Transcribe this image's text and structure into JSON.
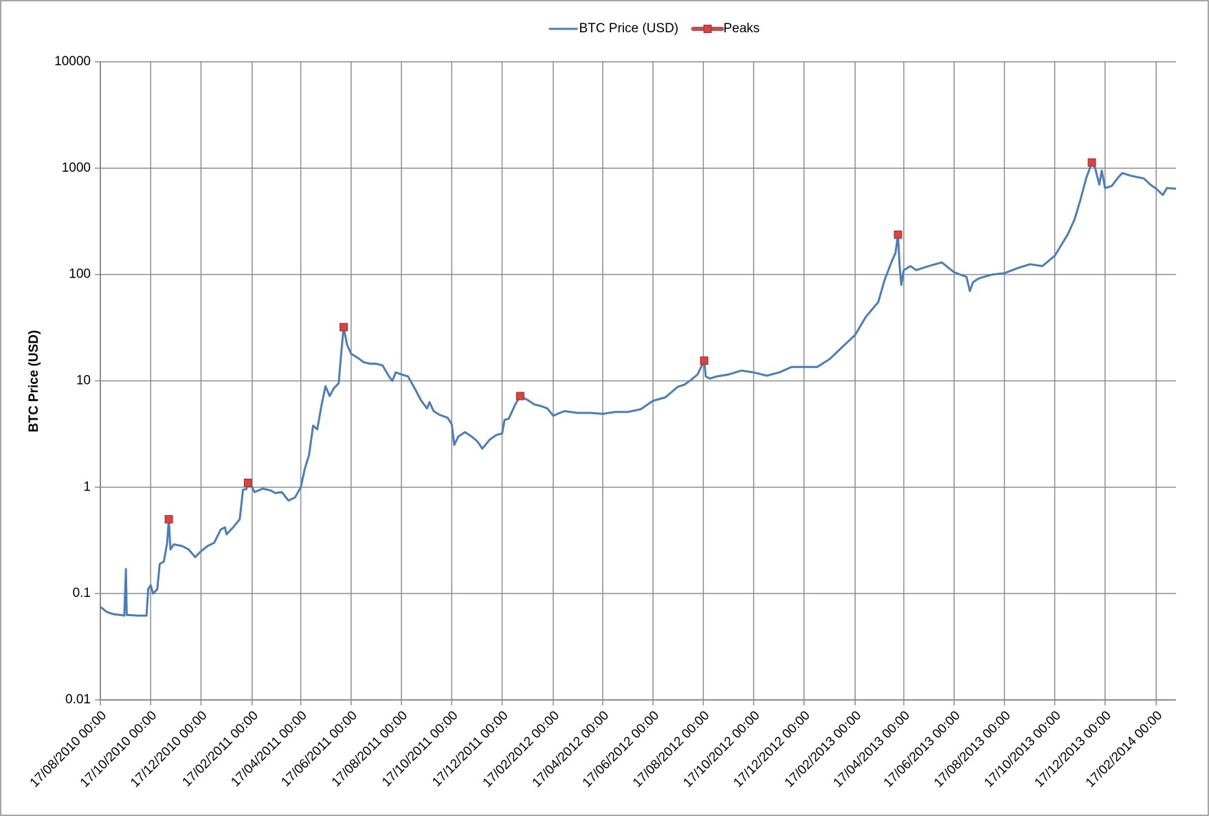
{
  "chart_data": {
    "type": "line",
    "ylabel": "BTC Price (USD)",
    "log_y": true,
    "grid": true,
    "legend": "top",
    "xlim": [
      "2010-08-17",
      "2014-03-13"
    ],
    "ylim": [
      0.01,
      10000
    ],
    "yticks": [
      0.01,
      0.1,
      1,
      10,
      100,
      1000,
      10000
    ],
    "xticks": [
      {
        "value": "2010-08-17",
        "label": "17/08/2010 00:00"
      },
      {
        "value": "2010-10-17",
        "label": "17/10/2010 00:00"
      },
      {
        "value": "2010-12-17",
        "label": "17/12/2010 00:00"
      },
      {
        "value": "2011-02-17",
        "label": "17/02/2011 00:00"
      },
      {
        "value": "2011-04-17",
        "label": "17/04/2011 00:00"
      },
      {
        "value": "2011-06-17",
        "label": "17/06/2011 00:00"
      },
      {
        "value": "2011-08-17",
        "label": "17/08/2011 00:00"
      },
      {
        "value": "2011-10-17",
        "label": "17/10/2011 00:00"
      },
      {
        "value": "2011-12-17",
        "label": "17/12/2011 00:00"
      },
      {
        "value": "2012-02-17",
        "label": "17/02/2012 00:00"
      },
      {
        "value": "2012-04-17",
        "label": "17/04/2012 00:00"
      },
      {
        "value": "2012-06-17",
        "label": "17/06/2012 00:00"
      },
      {
        "value": "2012-08-17",
        "label": "17/08/2012 00:00"
      },
      {
        "value": "2012-10-17",
        "label": "17/10/2012 00:00"
      },
      {
        "value": "2012-12-17",
        "label": "17/12/2012 00:00"
      },
      {
        "value": "2013-02-17",
        "label": "17/02/2013 00:00"
      },
      {
        "value": "2013-04-17",
        "label": "17/04/2013 00:00"
      },
      {
        "value": "2013-06-17",
        "label": "17/06/2013 00:00"
      },
      {
        "value": "2013-08-17",
        "label": "17/08/2013 00:00"
      },
      {
        "value": "2013-10-17",
        "label": "17/10/2013 00:00"
      },
      {
        "value": "2013-12-17",
        "label": "17/12/2013 00:00"
      },
      {
        "value": "2014-02-17",
        "label": "17/02/2014 00:00"
      }
    ],
    "series": [
      {
        "name": "BTC Price (USD)",
        "color": "#4a7ebb",
        "marker": "none",
        "x": [
          "2010-08-17",
          "2010-08-25",
          "2010-09-02",
          "2010-09-10",
          "2010-09-15",
          "2010-09-17",
          "2010-09-18",
          "2010-10-02",
          "2010-10-12",
          "2010-10-14",
          "2010-10-17",
          "2010-10-20",
          "2010-10-25",
          "2010-10-28",
          "2010-11-02",
          "2010-11-06",
          "2010-11-08",
          "2010-11-10",
          "2010-11-14",
          "2010-11-24",
          "2010-12-02",
          "2010-12-10",
          "2010-12-17",
          "2010-12-25",
          "2011-01-02",
          "2011-01-10",
          "2011-01-15",
          "2011-01-17",
          "2011-01-25",
          "2011-02-02",
          "2011-02-06",
          "2011-02-10",
          "2011-02-12",
          "2011-02-17",
          "2011-02-20",
          "2011-03-02",
          "2011-03-12",
          "2011-03-17",
          "2011-03-25",
          "2011-04-02",
          "2011-04-10",
          "2011-04-17",
          "2011-04-22",
          "2011-04-27",
          "2011-05-02",
          "2011-05-07",
          "2011-05-12",
          "2011-05-17",
          "2011-05-22",
          "2011-05-27",
          "2011-06-02",
          "2011-06-05",
          "2011-06-08",
          "2011-06-12",
          "2011-06-17",
          "2011-06-25",
          "2011-07-02",
          "2011-07-10",
          "2011-07-17",
          "2011-07-25",
          "2011-08-02",
          "2011-08-06",
          "2011-08-10",
          "2011-08-17",
          "2011-08-25",
          "2011-09-02",
          "2011-09-10",
          "2011-09-17",
          "2011-09-20",
          "2011-09-25",
          "2011-10-02",
          "2011-10-12",
          "2011-10-17",
          "2011-10-20",
          "2011-10-25",
          "2011-11-02",
          "2011-11-10",
          "2011-11-17",
          "2011-11-20",
          "2011-11-23",
          "2011-12-02",
          "2011-12-10",
          "2011-12-17",
          "2011-12-20",
          "2011-12-25",
          "2012-01-02",
          "2012-01-08",
          "2012-01-17",
          "2012-01-25",
          "2012-02-02",
          "2012-02-10",
          "2012-02-17",
          "2012-02-25",
          "2012-03-02",
          "2012-03-17",
          "2012-04-02",
          "2012-04-17",
          "2012-05-02",
          "2012-05-17",
          "2012-06-02",
          "2012-06-17",
          "2012-07-02",
          "2012-07-17",
          "2012-07-25",
          "2012-08-02",
          "2012-08-10",
          "2012-08-18",
          "2012-08-20",
          "2012-08-25",
          "2012-09-02",
          "2012-09-17",
          "2012-10-02",
          "2012-10-17",
          "2012-11-02",
          "2012-11-17",
          "2012-12-02",
          "2012-12-17",
          "2013-01-02",
          "2013-01-17",
          "2013-02-02",
          "2013-02-17",
          "2013-03-02",
          "2013-03-17",
          "2013-03-25",
          "2013-04-02",
          "2013-04-07",
          "2013-04-10",
          "2013-04-12",
          "2013-04-14",
          "2013-04-17",
          "2013-04-25",
          "2013-05-02",
          "2013-05-17",
          "2013-06-02",
          "2013-06-17",
          "2013-07-02",
          "2013-07-06",
          "2013-07-10",
          "2013-07-17",
          "2013-08-02",
          "2013-08-17",
          "2013-09-02",
          "2013-09-17",
          "2013-10-02",
          "2013-10-17",
          "2013-10-25",
          "2013-11-02",
          "2013-11-10",
          "2013-11-17",
          "2013-11-24",
          "2013-12-01",
          "2013-12-05",
          "2013-12-10",
          "2013-12-13",
          "2013-12-17",
          "2013-12-25",
          "2014-01-02",
          "2014-01-07",
          "2014-01-17",
          "2014-02-02",
          "2014-02-10",
          "2014-02-17",
          "2014-02-25",
          "2014-03-02",
          "2014-03-13"
        ],
        "values": [
          0.075,
          0.067,
          0.064,
          0.063,
          0.062,
          0.17,
          0.063,
          0.062,
          0.062,
          0.11,
          0.12,
          0.1,
          0.11,
          0.19,
          0.2,
          0.3,
          0.5,
          0.26,
          0.29,
          0.28,
          0.26,
          0.22,
          0.25,
          0.28,
          0.3,
          0.4,
          0.42,
          0.36,
          0.42,
          0.5,
          0.95,
          0.96,
          1.1,
          1.0,
          0.9,
          0.97,
          0.93,
          0.88,
          0.9,
          0.75,
          0.8,
          1.0,
          1.5,
          2.0,
          3.8,
          3.5,
          5.8,
          8.9,
          7.2,
          8.5,
          9.5,
          18,
          32,
          22,
          18,
          16.5,
          15,
          14.5,
          14.5,
          14,
          11,
          10,
          12,
          11.5,
          11,
          8.5,
          6.5,
          5.5,
          6.3,
          5.2,
          4.8,
          4.5,
          3.9,
          2.5,
          3.0,
          3.3,
          3.0,
          2.7,
          2.5,
          2.3,
          2.8,
          3.1,
          3.2,
          4.3,
          4.4,
          6.0,
          7.2,
          6.6,
          6.0,
          5.8,
          5.5,
          4.7,
          5.0,
          5.2,
          5.0,
          5.0,
          4.9,
          5.1,
          5.1,
          5.4,
          6.5,
          7.0,
          8.8,
          9.2,
          10.2,
          11.5,
          15.5,
          11,
          10.5,
          11,
          11.5,
          12.5,
          12,
          11.2,
          12,
          13.5,
          13.5,
          13.5,
          16,
          21,
          27,
          40,
          55,
          90,
          130,
          160,
          237,
          120,
          80,
          110,
          120,
          110,
          120,
          130,
          105,
          95,
          70,
          85,
          92,
          100,
          103,
          115,
          125,
          120,
          150,
          190,
          240,
          330,
          500,
          800,
          1130,
          1000,
          700,
          950,
          650,
          680,
          820,
          900,
          850,
          800,
          700,
          640,
          560,
          650,
          640
        ]
      },
      {
        "name": "Peaks",
        "color": "#d9443f",
        "marker": "square",
        "x": [
          "2010-11-08",
          "2011-02-12",
          "2011-06-08",
          "2012-01-08",
          "2012-08-18",
          "2013-04-10",
          "2013-12-01"
        ],
        "values": [
          0.5,
          1.1,
          32,
          7.2,
          15.5,
          237,
          1130
        ]
      }
    ]
  }
}
